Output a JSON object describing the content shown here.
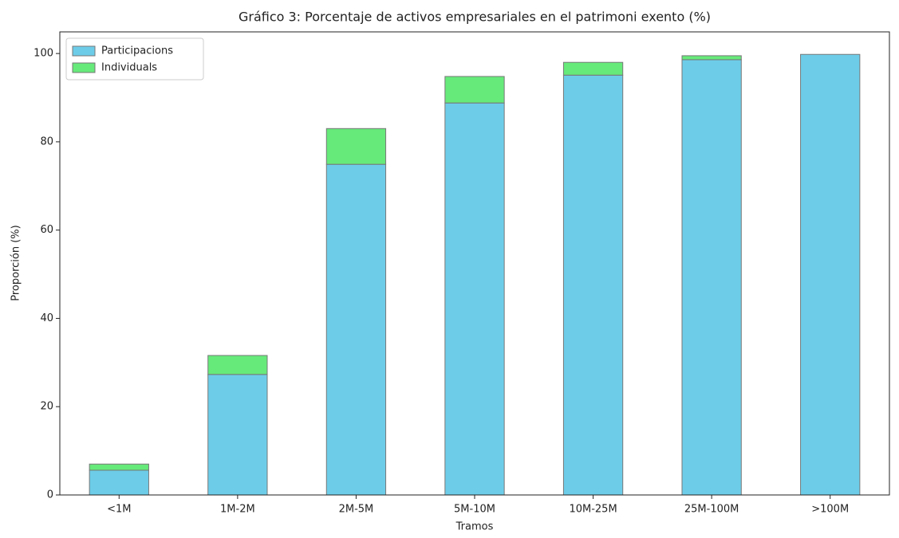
{
  "chart_data": {
    "type": "stacked_bar",
    "title": "Gráfico 3: Porcentaje de activos empresariales en el patrimoni exento (%)",
    "x_label": "Tramos",
    "y_label": "Proporción (%)",
    "categories": [
      "<1M",
      "1M-2M",
      "2M-5M",
      "5M-10M",
      "10M-25M",
      "25M-100M",
      ">100M"
    ],
    "series": [
      {
        "name": "Participacions",
        "color": "#6dcde9",
        "values": [
          5.6,
          27.3,
          74.9,
          88.8,
          95.1,
          98.6,
          99.8
        ]
      },
      {
        "name": "Individuals",
        "color": "#66ea7a",
        "values": [
          1.4,
          4.3,
          8.1,
          6.0,
          2.9,
          0.9,
          0
        ]
      }
    ],
    "ylim": [
      0,
      104.9
    ],
    "yticks": [
      0,
      20,
      40,
      60,
      80,
      100
    ],
    "legend": "upper-left"
  }
}
